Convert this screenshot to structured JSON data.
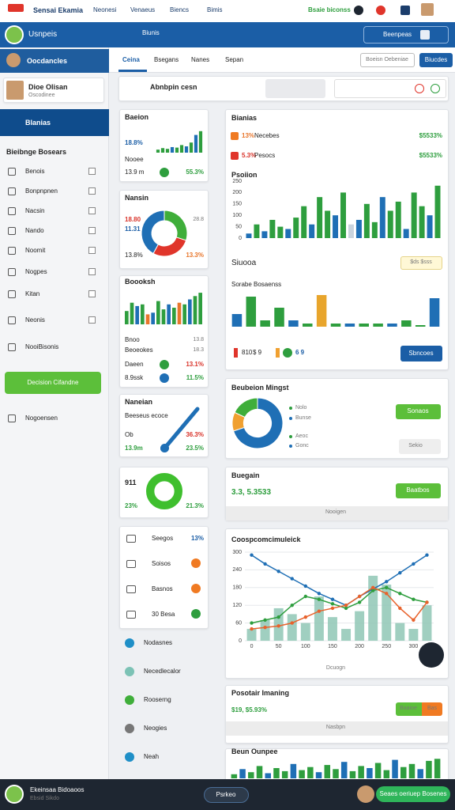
{
  "topbar": {
    "items": [
      "Sensai Ekamia",
      "Neonesi",
      "Venaeus",
      "Biencs",
      "Bimis"
    ],
    "status": "Bsaie biconss"
  },
  "header": {
    "title": "Usnpeis",
    "tab": "Biunis",
    "search": "Beenpeas"
  },
  "sidebar": {
    "heading": "Oocdancles",
    "user_name": "Dioe Olisan",
    "user_role": "Oscodinee",
    "active": "Blanias",
    "section": "Bieibnge Bosears",
    "items": [
      "Benois",
      "Bonpnpnen",
      "Nacsin",
      "Nando",
      "Noomit",
      "Nogpes",
      "Kitan",
      "Neonis",
      "NooiBisonis"
    ],
    "button": "Decision Cifandne",
    "footer": "Nogoensen"
  },
  "nav": {
    "tabs": [
      "Ceina",
      "Bsegans",
      "Nanes",
      "Sepan"
    ],
    "secondary": "Boeisn Oebeniae",
    "primary": "Biucdes"
  },
  "search": {
    "label": "Abnbpin cesn"
  },
  "cards": {
    "a": {
      "title": "Baeion",
      "stat": "18.8%",
      "label": "Nooee",
      "value": "13.9 m",
      "change": "55.3%"
    },
    "b": {
      "title": "Nansin",
      "v1": "18.80",
      "v2": "11.31",
      "v3": "28.8",
      "left": "13.8%",
      "right": "13.3%"
    },
    "c": {
      "title": "Boooksh",
      "l1": "Bnoo",
      "l2": "Beoeokes",
      "r1": "13.8",
      "r2": "18.3",
      "rows": [
        {
          "label": "Daeen",
          "value": "13.1%"
        },
        {
          "label": "8.9ssk",
          "value": "11.5%"
        }
      ]
    },
    "d": {
      "title": "Naneian",
      "subtitle": "Beeseus ecoce",
      "l1": "Ob",
      "l2": "13.9m",
      "r1": "36.3%",
      "r2": "23.5%"
    },
    "e": {
      "title": "911",
      "left": "23%",
      "right": "21.3%"
    },
    "f": {
      "rows": [
        {
          "label": "Seegos",
          "value": "13%"
        },
        {
          "label": "Soisos"
        },
        {
          "label": "Basnos"
        },
        {
          "label": "30 Besa"
        }
      ]
    },
    "links": [
      "Nodasnes",
      "Necedlecalor",
      "Rooserng",
      "Neogies",
      "Neah"
    ]
  },
  "panels": {
    "summary": {
      "title": "Bianias",
      "rows": [
        {
          "change": "13%",
          "label": "Necebes",
          "value": "$5533%"
        },
        {
          "change": "5.3%",
          "label": "Pesocs",
          "value": "$5533%"
        }
      ],
      "chart_title": "Psoiion",
      "subhead": "Siuooa",
      "badge": "$ds $sss",
      "chart2_title": "Sorabe Bosaenss",
      "legend": [
        "810",
        "$ 9",
        "6 9"
      ],
      "button": "Sbncoes"
    },
    "mix": {
      "title": "Beubeion Mingst",
      "labels": [
        "Nolo",
        "Bunse",
        "Aeoc",
        "Gonc"
      ],
      "button": "Sonaos",
      "button2": "Sekio"
    },
    "region": {
      "title": "Buegain",
      "value": "3.3, 5.3533",
      "button": "Baatbos",
      "footer": "Nooigen"
    },
    "combo": {
      "title": "Coospcomcimuleick",
      "footer": "Dcuogn"
    },
    "posit": {
      "title": "Posotair Imaning",
      "value": "$19, $5.93%",
      "button": "Baaioe",
      "button2": "Bas",
      "footer": "Nasbpn"
    },
    "bottom": {
      "title": "Beun Ounpee"
    }
  },
  "footer": {
    "name": "Ekeinsaa Bidoaoos",
    "sub": "Ebsid Sikdo",
    "pill": "Psrkeo",
    "action": "Seaes oeriuep Bosenes"
  },
  "chart_data": [
    {
      "type": "bar",
      "values": [
        12,
        18,
        15,
        22,
        20,
        30,
        25,
        40,
        70,
        85
      ],
      "colors": [
        "#2e9e3e",
        "#2e9e3e",
        "#2e9e3e",
        "#1f6fb5",
        "#2e9e3e",
        "#2e9e3e",
        "#1f6fb5",
        "#2e9e3e",
        "#1f6fb5",
        "#2e9e3e"
      ],
      "ylim": [
        0,
        100
      ]
    },
    {
      "type": "pie",
      "values": [
        30,
        28,
        42
      ],
      "colors": [
        "#3fae3a",
        "#e0352b",
        "#1f6fb5"
      ],
      "donut": true
    },
    {
      "type": "bar",
      "values": [
        40,
        65,
        55,
        60,
        30,
        35,
        70,
        45,
        60,
        50,
        65,
        60,
        75,
        85,
        95
      ],
      "colors": [
        "#2e9e3e",
        "#2e9e3e",
        "#1f6fb5",
        "#2e9e3e",
        "#e8762c",
        "#1f6fb5",
        "#2e9e3e",
        "#2e9e3e",
        "#1f6fb5",
        "#2e9e3e",
        "#e8762c",
        "#2e9e3e",
        "#1f6fb5",
        "#2e9e3e",
        "#2e9e3e"
      ],
      "ylim": [
        0,
        100
      ]
    },
    {
      "type": "pie",
      "values": [
        100
      ],
      "colors": [
        "#3fbf2e"
      ],
      "donut": true
    },
    {
      "type": "bar",
      "values": [
        20,
        60,
        30,
        80,
        50,
        40,
        90,
        140,
        60,
        180,
        120,
        100,
        200,
        60,
        80,
        150,
        70,
        180,
        120,
        160,
        40,
        200,
        140,
        100,
        230
      ],
      "colors": [
        "#1f6fb5",
        "#2e9e3e",
        "#1f6fb5",
        "#2e9e3e",
        "#2e9e3e",
        "#1f6fb5",
        "#2e9e3e",
        "#2e9e3e",
        "#1f6fb5",
        "#2e9e3e",
        "#2e9e3e",
        "#1f6fb5",
        "#2e9e3e",
        "#c9d3dd",
        "#1f6fb5",
        "#2e9e3e",
        "#2e9e3e",
        "#1f6fb5",
        "#2e9e3e",
        "#2e9e3e",
        "#1f6fb5",
        "#2e9e3e",
        "#2e9e3e",
        "#1f6fb5",
        "#2e9e3e"
      ],
      "ylim": [
        0,
        250
      ],
      "yticks": [
        0,
        50,
        100,
        150,
        200,
        250
      ]
    },
    {
      "type": "bar",
      "values": [
        40,
        95,
        20,
        60,
        20,
        10,
        100,
        10,
        10,
        10,
        10,
        10,
        20,
        5,
        90
      ],
      "colors": [
        "#1f6fb5",
        "#2e9e3e",
        "#2e9e3e",
        "#2e9e3e",
        "#1f6fb5",
        "#2e9e3e",
        "#e8a52c",
        "#2e9e3e",
        "#1f6fb5",
        "#2e9e3e",
        "#2e9e3e",
        "#1f6fb5",
        "#2e9e3e",
        "#2e9e3e",
        "#1f6fb5"
      ],
      "ylim": [
        0,
        100
      ]
    },
    {
      "type": "pie",
      "values": [
        70,
        12,
        18
      ],
      "colors": [
        "#1f6fb5",
        "#f0a030",
        "#3fae3a"
      ],
      "donut": true
    },
    {
      "type": "combo",
      "categories": [
        "0",
        null,
        "50",
        null,
        "100",
        null,
        "150",
        null,
        "200",
        null,
        "250",
        null,
        "300",
        null
      ],
      "ylim": [
        0,
        300
      ],
      "yticks": [
        0,
        60,
        120,
        180,
        240,
        300
      ],
      "grid": true,
      "series": [
        {
          "type": "bar",
          "color": "#8fc7b5",
          "values": [
            40,
            70,
            110,
            90,
            60,
            150,
            80,
            40,
            100,
            220,
            190,
            60,
            40,
            120
          ]
        },
        {
          "type": "line",
          "color": "#1f6fb5",
          "values": [
            290,
            260,
            235,
            210,
            185,
            160,
            140,
            120,
            150,
            175,
            200,
            230,
            260,
            290
          ]
        },
        {
          "type": "line",
          "color": "#2e9e3e",
          "values": [
            60,
            70,
            80,
            120,
            150,
            140,
            125,
            110,
            130,
            170,
            180,
            160,
            140,
            130
          ]
        },
        {
          "type": "line",
          "color": "#e8622c",
          "values": [
            40,
            45,
            50,
            60,
            80,
            100,
            110,
            120,
            150,
            180,
            160,
            110,
            70,
            130
          ]
        }
      ]
    },
    {
      "type": "bar",
      "values": [
        20,
        45,
        30,
        60,
        25,
        50,
        35,
        70,
        40,
        55,
        30,
        65,
        45,
        80,
        35,
        60,
        50,
        75,
        40,
        90,
        55,
        70,
        45,
        85,
        95
      ],
      "colors": [
        "#2e9e3e",
        "#1f6fb5",
        "#2e9e3e",
        "#2e9e3e",
        "#1f6fb5",
        "#2e9e3e",
        "#2e9e3e",
        "#1f6fb5",
        "#2e9e3e",
        "#2e9e3e",
        "#1f6fb5",
        "#2e9e3e",
        "#2e9e3e",
        "#1f6fb5",
        "#2e9e3e",
        "#2e9e3e",
        "#1f6fb5",
        "#2e9e3e",
        "#2e9e3e",
        "#1f6fb5",
        "#2e9e3e",
        "#2e9e3e",
        "#1f6fb5",
        "#2e9e3e",
        "#2e9e3e"
      ],
      "ylim": [
        0,
        100
      ]
    }
  ]
}
